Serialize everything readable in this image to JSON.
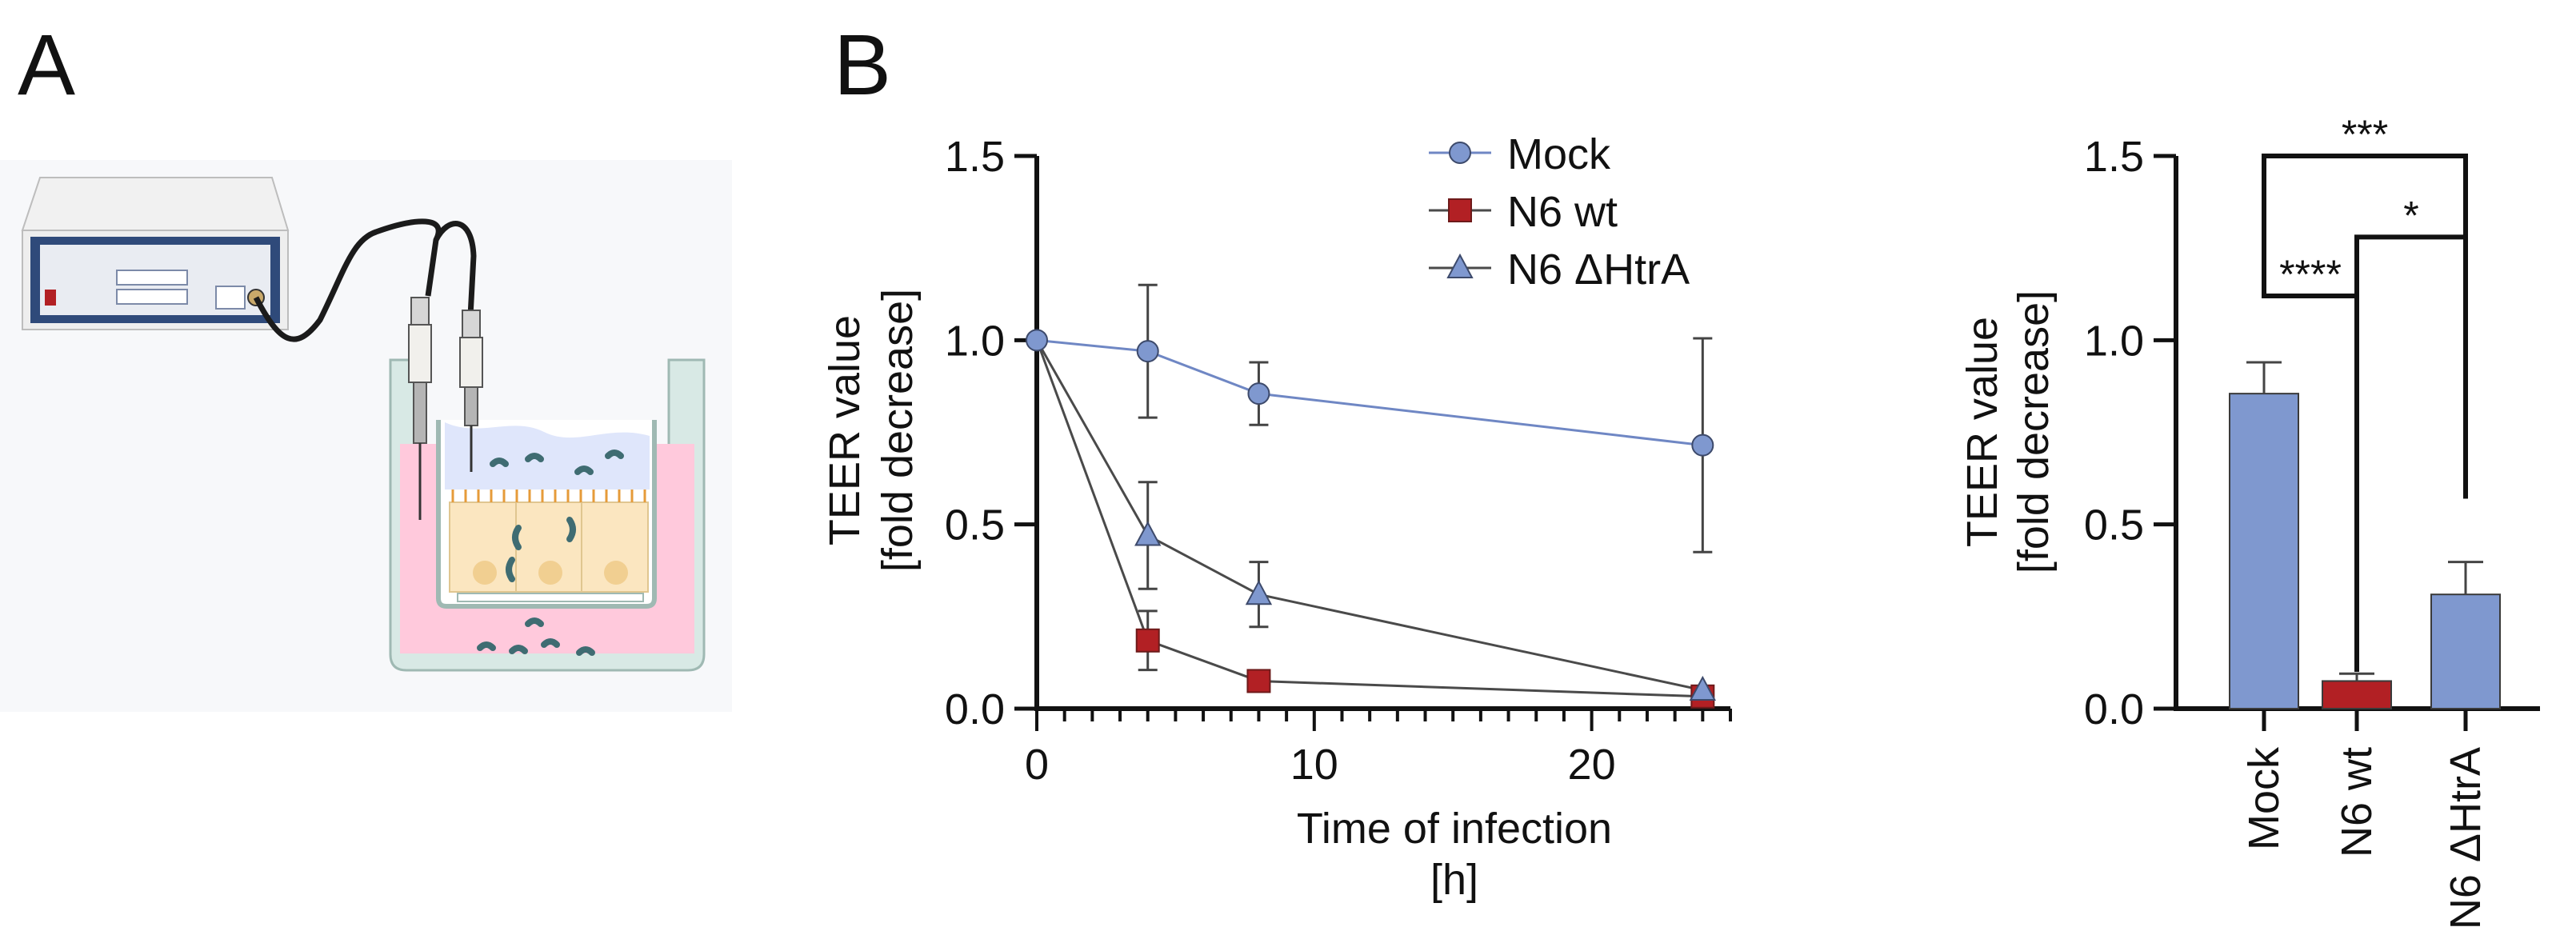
{
  "panels": {
    "a_label": "A",
    "b_label": "B"
  },
  "colors": {
    "mock": "#7f98cf",
    "mock_line": "#6f87c4",
    "n6wt": "#b22024",
    "htra": "#7f98cf",
    "dark_line": "#4a4a4a",
    "axis": "#111111",
    "medium": "#ffc9dc",
    "cells": "#fbe6c0",
    "bacteria": "#3f6c72"
  },
  "chart_data": [
    {
      "type": "line",
      "x": [
        0,
        4,
        8,
        24
      ],
      "xlabel": "Time of infection",
      "xlabel2": "[h]",
      "ylabel": "TEER value",
      "ylabel2": "[fold decrease]",
      "xlim": [
        0,
        25
      ],
      "ylim": [
        0,
        1.5
      ],
      "xticks": [
        "0",
        "10",
        "20"
      ],
      "yticks": [
        "0.0",
        "0.5",
        "1.0",
        "1.5"
      ],
      "legend_position": "top-center",
      "series": [
        {
          "name": "Mock",
          "marker": "circle",
          "values": [
            1.0,
            0.97,
            0.855,
            0.715
          ],
          "errors": [
            0,
            0.18,
            0.085,
            0.29
          ]
        },
        {
          "name": "N6 wt",
          "marker": "square",
          "values": [
            1.0,
            0.185,
            0.075,
            0.033
          ],
          "errors": [
            0,
            0.08,
            0,
            0
          ]
        },
        {
          "name": "N6 ΔHtrA",
          "marker": "triangle",
          "values": [
            1.0,
            0.47,
            0.31,
            0.05
          ],
          "errors": [
            0,
            0.145,
            0.088,
            0
          ]
        }
      ]
    },
    {
      "type": "bar",
      "categories": [
        "Mock",
        "N6 wt",
        "N6 ΔHtrA"
      ],
      "values": [
        0.855,
        0.075,
        0.31
      ],
      "errors": [
        0.085,
        0.02,
        0.088
      ],
      "ylabel": "TEER value",
      "ylabel2": "[fold decrease]",
      "ylim": [
        0,
        1.5
      ],
      "yticks": [
        "0.0",
        "0.5",
        "1.0",
        "1.5"
      ],
      "significance": [
        {
          "from": "Mock",
          "to": "N6 ΔHtrA",
          "label": "***",
          "level": 1.5
        },
        {
          "from": "N6 wt",
          "to": "N6 ΔHtrA",
          "label": "*",
          "level": 1.28
        },
        {
          "from": "Mock",
          "to": "N6 wt",
          "label": "****",
          "level": 1.12
        }
      ]
    }
  ]
}
